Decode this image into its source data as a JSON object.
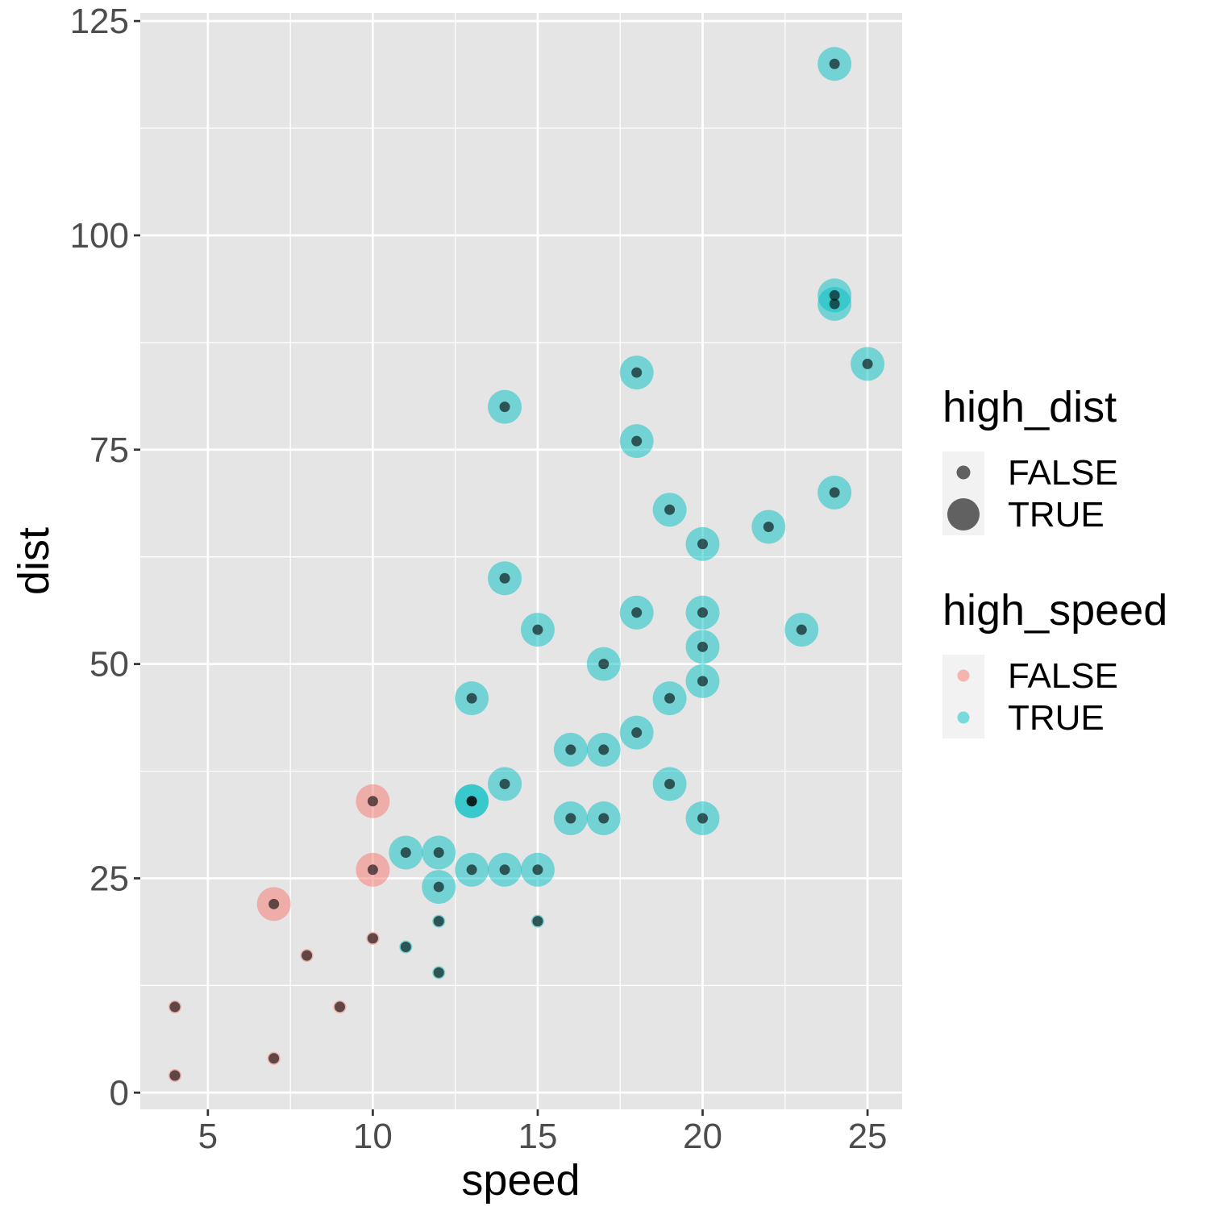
{
  "chart_data": {
    "type": "scatter",
    "title": "",
    "xlabel": "speed",
    "ylabel": "dist",
    "xlim": [
      2.95,
      26.05
    ],
    "ylim": [
      -1.95,
      125.95
    ],
    "x_ticks": [
      5,
      10,
      15,
      20,
      25
    ],
    "y_ticks": [
      0,
      25,
      50,
      75,
      100,
      125
    ],
    "x_tick_labels": [
      "5",
      "10",
      "15",
      "20",
      "25"
    ],
    "y_tick_labels": [
      "0",
      "25",
      "50",
      "75",
      "100",
      "125"
    ],
    "grid": true,
    "legend_position": "right",
    "overlay_points": {
      "color": "#000000",
      "opacity": 0.6
    },
    "legends": [
      {
        "title": "high_dist",
        "aesthetic": "size",
        "entries": [
          {
            "label": "FALSE",
            "value": false
          },
          {
            "label": "TRUE",
            "value": true
          }
        ]
      },
      {
        "title": "high_speed",
        "aesthetic": "color",
        "entries": [
          {
            "label": "FALSE",
            "value": false,
            "color": "#F8766D"
          },
          {
            "label": "TRUE",
            "value": true,
            "color": "#00BFC4"
          }
        ]
      }
    ],
    "colors": {
      "high_speed_false": "#F8766D",
      "high_speed_true": "#00BFC4",
      "panel": "#E5E5E5",
      "grid": "#FFFFFF",
      "legend_key": "#F2F2F2"
    },
    "points": [
      {
        "speed": 4,
        "dist": 2,
        "high_speed": false,
        "high_dist": false
      },
      {
        "speed": 4,
        "dist": 10,
        "high_speed": false,
        "high_dist": false
      },
      {
        "speed": 7,
        "dist": 4,
        "high_speed": false,
        "high_dist": false
      },
      {
        "speed": 7,
        "dist": 22,
        "high_speed": false,
        "high_dist": true
      },
      {
        "speed": 8,
        "dist": 16,
        "high_speed": false,
        "high_dist": false
      },
      {
        "speed": 9,
        "dist": 10,
        "high_speed": false,
        "high_dist": false
      },
      {
        "speed": 10,
        "dist": 18,
        "high_speed": false,
        "high_dist": false
      },
      {
        "speed": 10,
        "dist": 26,
        "high_speed": false,
        "high_dist": true
      },
      {
        "speed": 10,
        "dist": 34,
        "high_speed": false,
        "high_dist": true
      },
      {
        "speed": 11,
        "dist": 17,
        "high_speed": true,
        "high_dist": false
      },
      {
        "speed": 11,
        "dist": 28,
        "high_speed": true,
        "high_dist": true
      },
      {
        "speed": 12,
        "dist": 14,
        "high_speed": true,
        "high_dist": false
      },
      {
        "speed": 12,
        "dist": 20,
        "high_speed": true,
        "high_dist": false
      },
      {
        "speed": 12,
        "dist": 24,
        "high_speed": true,
        "high_dist": true
      },
      {
        "speed": 12,
        "dist": 28,
        "high_speed": true,
        "high_dist": true
      },
      {
        "speed": 13,
        "dist": 26,
        "high_speed": true,
        "high_dist": true
      },
      {
        "speed": 13,
        "dist": 34,
        "high_speed": true,
        "high_dist": true
      },
      {
        "speed": 13,
        "dist": 34,
        "high_speed": true,
        "high_dist": true
      },
      {
        "speed": 13,
        "dist": 46,
        "high_speed": true,
        "high_dist": true
      },
      {
        "speed": 14,
        "dist": 26,
        "high_speed": true,
        "high_dist": true
      },
      {
        "speed": 14,
        "dist": 36,
        "high_speed": true,
        "high_dist": true
      },
      {
        "speed": 14,
        "dist": 60,
        "high_speed": true,
        "high_dist": true
      },
      {
        "speed": 14,
        "dist": 80,
        "high_speed": true,
        "high_dist": true
      },
      {
        "speed": 15,
        "dist": 20,
        "high_speed": true,
        "high_dist": false
      },
      {
        "speed": 15,
        "dist": 26,
        "high_speed": true,
        "high_dist": true
      },
      {
        "speed": 15,
        "dist": 54,
        "high_speed": true,
        "high_dist": true
      },
      {
        "speed": 16,
        "dist": 32,
        "high_speed": true,
        "high_dist": true
      },
      {
        "speed": 16,
        "dist": 40,
        "high_speed": true,
        "high_dist": true
      },
      {
        "speed": 17,
        "dist": 32,
        "high_speed": true,
        "high_dist": true
      },
      {
        "speed": 17,
        "dist": 40,
        "high_speed": true,
        "high_dist": true
      },
      {
        "speed": 17,
        "dist": 50,
        "high_speed": true,
        "high_dist": true
      },
      {
        "speed": 18,
        "dist": 42,
        "high_speed": true,
        "high_dist": true
      },
      {
        "speed": 18,
        "dist": 56,
        "high_speed": true,
        "high_dist": true
      },
      {
        "speed": 18,
        "dist": 76,
        "high_speed": true,
        "high_dist": true
      },
      {
        "speed": 18,
        "dist": 84,
        "high_speed": true,
        "high_dist": true
      },
      {
        "speed": 19,
        "dist": 36,
        "high_speed": true,
        "high_dist": true
      },
      {
        "speed": 19,
        "dist": 46,
        "high_speed": true,
        "high_dist": true
      },
      {
        "speed": 19,
        "dist": 68,
        "high_speed": true,
        "high_dist": true
      },
      {
        "speed": 20,
        "dist": 32,
        "high_speed": true,
        "high_dist": true
      },
      {
        "speed": 20,
        "dist": 48,
        "high_speed": true,
        "high_dist": true
      },
      {
        "speed": 20,
        "dist": 52,
        "high_speed": true,
        "high_dist": true
      },
      {
        "speed": 20,
        "dist": 56,
        "high_speed": true,
        "high_dist": true
      },
      {
        "speed": 20,
        "dist": 64,
        "high_speed": true,
        "high_dist": true
      },
      {
        "speed": 22,
        "dist": 66,
        "high_speed": true,
        "high_dist": true
      },
      {
        "speed": 23,
        "dist": 54,
        "high_speed": true,
        "high_dist": true
      },
      {
        "speed": 24,
        "dist": 70,
        "high_speed": true,
        "high_dist": true
      },
      {
        "speed": 24,
        "dist": 92,
        "high_speed": true,
        "high_dist": true
      },
      {
        "speed": 24,
        "dist": 93,
        "high_speed": true,
        "high_dist": true
      },
      {
        "speed": 24,
        "dist": 120,
        "high_speed": true,
        "high_dist": true
      },
      {
        "speed": 25,
        "dist": 85,
        "high_speed": true,
        "high_dist": true
      }
    ]
  }
}
